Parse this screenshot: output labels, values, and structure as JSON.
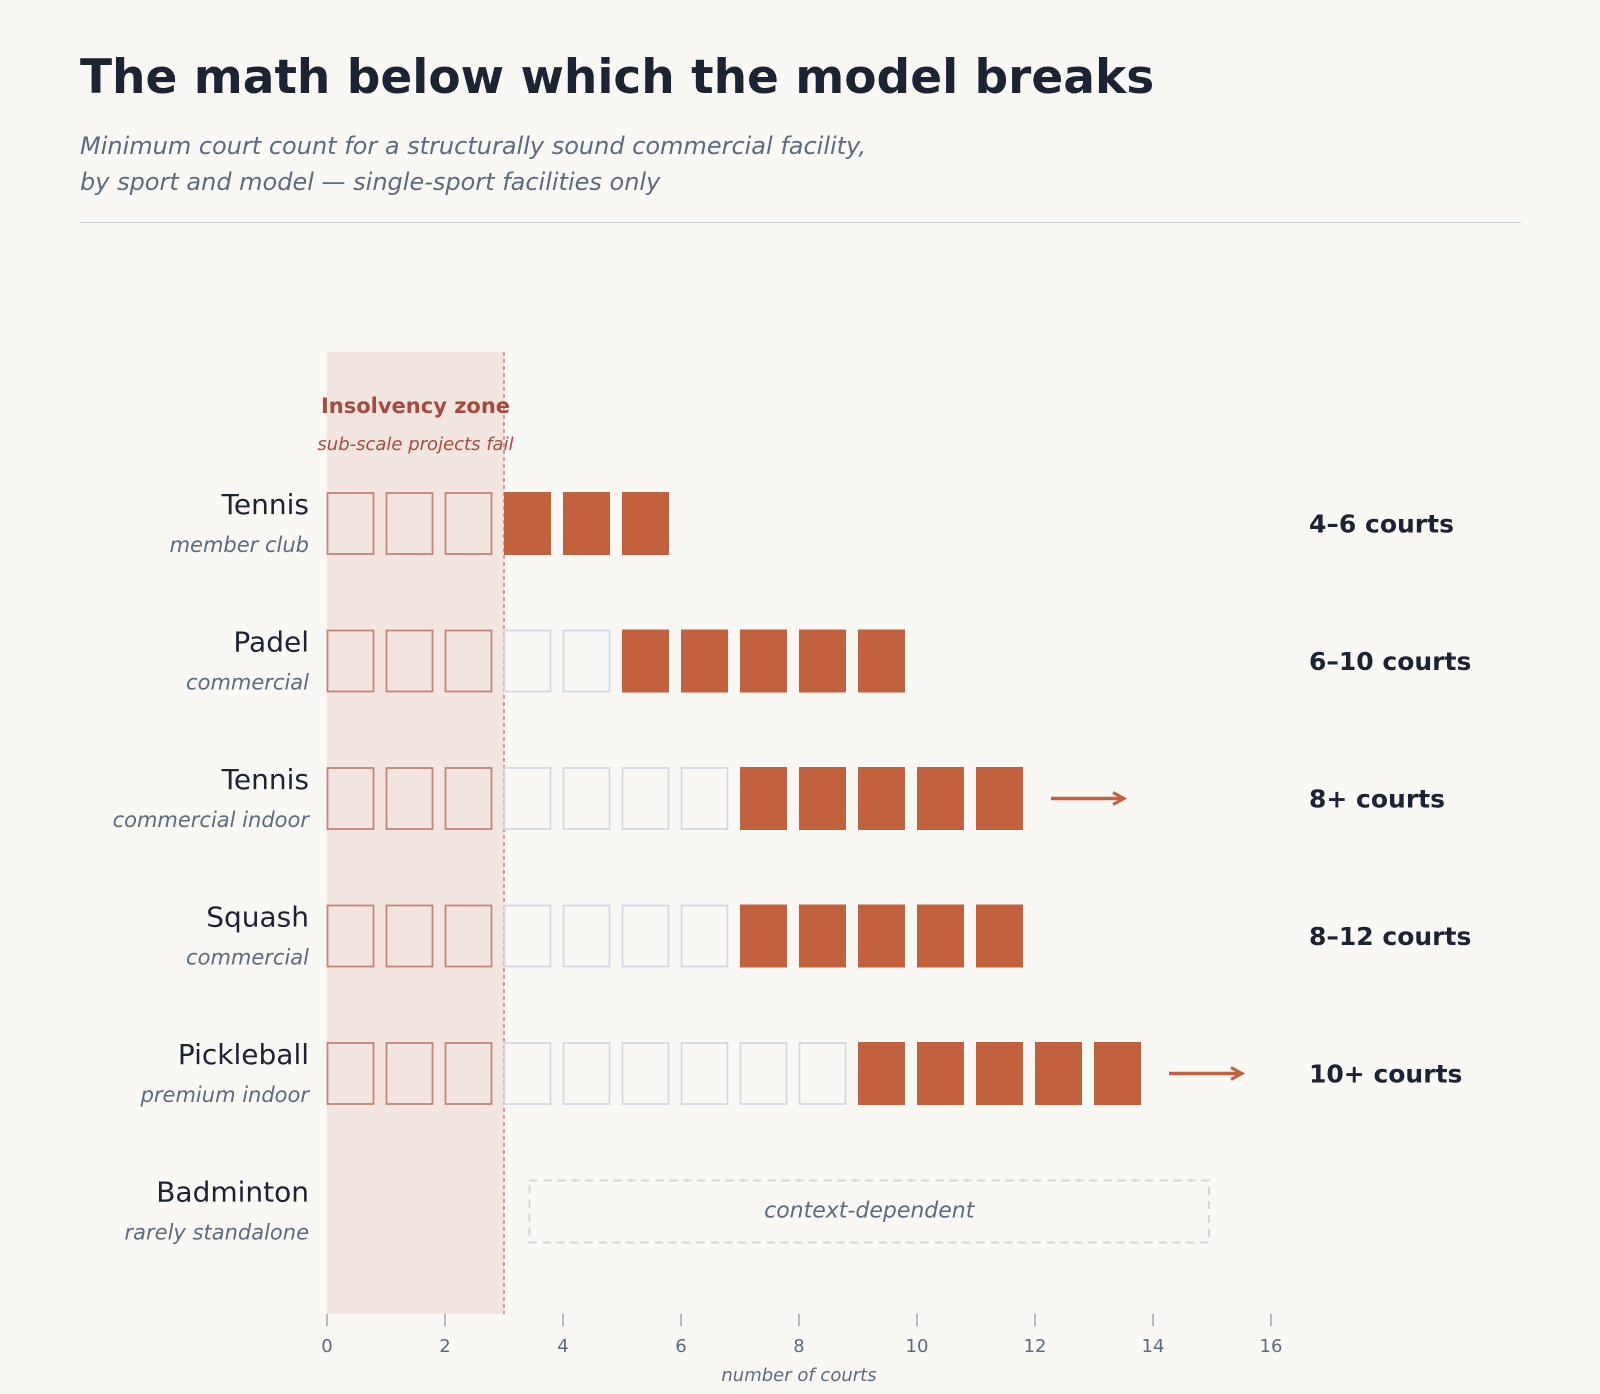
{
  "header": {
    "title": "The math below which the model breaks",
    "subtitle_line1": "Minimum court count for a structurally sound commercial facility,",
    "subtitle_line2": "by sport and model — single-sport facilities only"
  },
  "colors": {
    "background": "#faf8f5",
    "filled_court": "#c2613d",
    "zone_fill": "#f3e5e0",
    "zone_border": "#c98378",
    "zone_title": "#a84a3e",
    "empty_court_border": "#d5dae2",
    "text_dark": "#1c2333",
    "text_muted": "#5c6b7d"
  },
  "chart_data": {
    "type": "bar",
    "title": "The math below which the model breaks",
    "xlabel": "number of courts",
    "xlim": [
      0,
      16
    ],
    "x_ticks": [
      "0",
      "2",
      "4",
      "6",
      "8",
      "10",
      "12",
      "14",
      "16"
    ],
    "grid": false,
    "zone": {
      "title": "Insolvency zone",
      "subtitle": "sub-scale projects fail",
      "from": 0,
      "to": 3
    },
    "rows": [
      {
        "sport": "Tennis",
        "model": "member club",
        "min": 4,
        "max": 6,
        "open_ended": false,
        "label": "4–6 courts"
      },
      {
        "sport": "Padel",
        "model": "commercial",
        "min": 6,
        "max": 10,
        "open_ended": false,
        "label": "6–10 courts"
      },
      {
        "sport": "Tennis",
        "model": "commercial indoor",
        "min": 8,
        "max": 12,
        "open_ended": true,
        "label": "8+ courts"
      },
      {
        "sport": "Squash",
        "model": "commercial",
        "min": 8,
        "max": 12,
        "open_ended": false,
        "label": "8–12 courts"
      },
      {
        "sport": "Pickleball",
        "model": "premium indoor",
        "min": 10,
        "max": 14,
        "open_ended": true,
        "label": "10+ courts"
      },
      {
        "sport": "Badminton",
        "model": "rarely standalone",
        "min": null,
        "max": null,
        "open_ended": false,
        "label": "",
        "note": "context-dependent"
      }
    ]
  }
}
